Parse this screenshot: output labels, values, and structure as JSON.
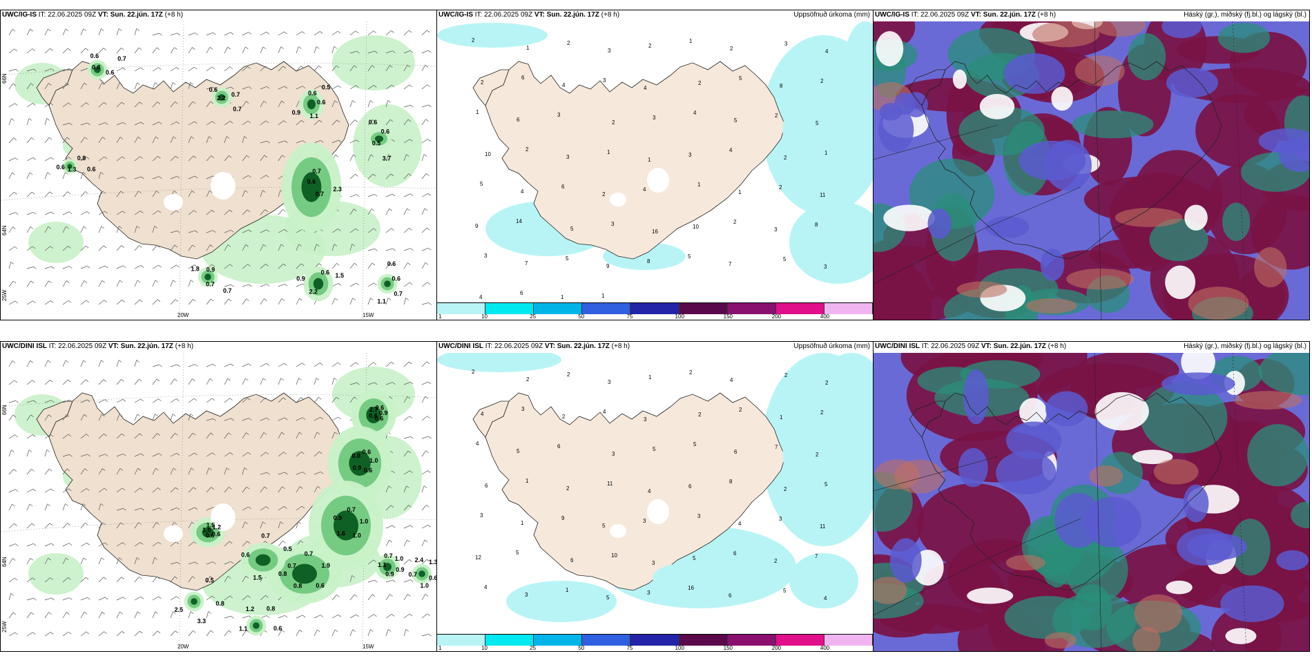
{
  "panels": [
    {
      "id": "top-wind",
      "src": "UWC/IG-IS",
      "it": "IT: 22.06.2025 09Z",
      "vt": "VT: Sun. 22.jún. 17Z",
      "lead": "(+8 h)",
      "right_label": "",
      "lat_labels": [
        "66N",
        "64N",
        "25W"
      ],
      "lon_labels": [
        "20W",
        "15W"
      ],
      "values": [
        "0.6",
        "0.5",
        "0.7",
        "0.7",
        "0.9",
        "0.6",
        "0.7",
        "0.6",
        "0.6",
        "0.9",
        "0.6",
        "0.7",
        "0.6",
        "1.5",
        "1.1",
        "0.9",
        "0.6",
        "0.6",
        "0.5",
        "3.7",
        "0.6",
        "0.7",
        "2.2",
        "0.6",
        "0.7",
        "0.8",
        "0.8",
        "1.1",
        "0.6",
        "2.3",
        "2.2",
        "0.6",
        "0.7",
        "1.8",
        "0.7",
        "1.3",
        "0.6"
      ]
    },
    {
      "id": "top-precip",
      "src": "UWC/IG-IS",
      "it": "IT: 22.06.2025 09Z",
      "vt": "VT: Sun. 22.jún. 17Z",
      "lead": "(+8 h)",
      "right_label": "Uppsöfnuð úrkoma (mm)",
      "values": [
        "2",
        "1",
        "2",
        "3",
        "2",
        "1",
        "2",
        "3",
        "4",
        "2",
        "6",
        "4",
        "3",
        "4",
        "2",
        "5",
        "8",
        "2",
        "1",
        "6",
        "3",
        "2",
        "3",
        "4",
        "5",
        "2",
        "5",
        "10",
        "2",
        "3",
        "1",
        "1",
        "3",
        "4",
        "2",
        "1",
        "5",
        "4",
        "6",
        "2",
        "4",
        "1",
        "1",
        "2",
        "11",
        "9",
        "14",
        "5",
        "3",
        "16",
        "10",
        "2",
        "3",
        "8",
        "3",
        "7",
        "5",
        "9",
        "8",
        "5",
        "7",
        "5",
        "3",
        "4",
        "6",
        "1",
        "1"
      ],
      "legend": [
        "1",
        "10",
        "25",
        "50",
        "75",
        "100",
        "150",
        "200",
        "400"
      ]
    },
    {
      "id": "top-cloud",
      "src": "UWC/IG-IS",
      "it": "IT: 22.06.2025 09Z",
      "vt": "VT: Sun. 22.jún. 17Z",
      "lead": "(+8 h)",
      "right_label": "Háský (gr.), miðský (fj.bl.) og lágský (bl.)"
    },
    {
      "id": "bottom-wind",
      "src": "UWC/DINI ISL",
      "it": "IT: 22.06.2025 09Z",
      "vt": "VT: Sun. 22.jún. 17Z",
      "lead": "(+8 h)",
      "right_label": "",
      "lat_labels": [
        "66N",
        "64N",
        "25W"
      ],
      "lon_labels": [
        "20W",
        "15W"
      ],
      "values": [
        "0.9",
        "0.9",
        "0.7",
        "0.6",
        "0.6",
        "1.2",
        "0.9",
        "2.4",
        "0.6",
        "2.5",
        "0.6",
        "0.6",
        "0.9",
        "1.9",
        "1.5",
        "1.5",
        "0.9",
        "0.7",
        "0.8",
        "3.3",
        "2.7",
        "1.0",
        "1.6",
        "0.7",
        "0.8",
        "1.0",
        "1.0",
        "1.0",
        "1.2",
        "0.8",
        "0.6",
        "0.6",
        "1.0",
        "0.7",
        "0.5",
        "0.6",
        "0.7",
        "0.6",
        "1.1",
        "0.5",
        "0.6",
        "0.8",
        "1.0",
        "0.8",
        "0.7",
        "0.6",
        "1.1",
        "1.3"
      ]
    },
    {
      "id": "bottom-precip",
      "src": "UWC/DINI ISL",
      "it": "IT: 22.06.2025 09Z",
      "vt": "VT: Sun. 22.jún. 17Z",
      "lead": "(+8 h)",
      "right_label": "Uppsöfnuð úrkoma (mm)",
      "values": [
        "2",
        "2",
        "2",
        "3",
        "1",
        "2",
        "4",
        "2",
        "2",
        "4",
        "3",
        "2",
        "4",
        "3",
        "2",
        "2",
        "1",
        "2",
        "4",
        "5",
        "6",
        "3",
        "5",
        "5",
        "6",
        "7",
        "2",
        "6",
        "1",
        "2",
        "11",
        "4",
        "6",
        "8",
        "2",
        "5",
        "3",
        "1",
        "9",
        "5",
        "3",
        "3",
        "4",
        "3",
        "11",
        "12",
        "5",
        "6",
        "10",
        "3",
        "5",
        "6",
        "2",
        "7",
        "4",
        "3",
        "1",
        "5",
        "3",
        "16",
        "6",
        "5",
        "4"
      ],
      "legend": [
        "1",
        "10",
        "25",
        "50",
        "75",
        "100",
        "150",
        "200",
        "400"
      ]
    },
    {
      "id": "bottom-cloud",
      "src": "UWC/DINI ISL",
      "it": "IT: 22.06.2025 09Z",
      "vt": "VT: Sun. 22.jún. 17Z",
      "lead": "(+8 h)",
      "right_label": "Háský (gr.), miðský (fj.bl.) og lágský (bl.)"
    }
  ],
  "colors": {
    "land": "#f6e9dc",
    "land_wind": "#efe0cf",
    "green_light": "#c8f1c8",
    "green_mid": "#6dc77a",
    "green_dark": "#0a5a20",
    "cyan_light": "#b8f4f6",
    "cloud_high": "#1f6f64",
    "cloud_mid": "#7a1245",
    "cloud_low": "#6a6ad6"
  },
  "legend_colors": [
    "#b8f4f6",
    "#00e8f0",
    "#00b4e8",
    "#3060e0",
    "#2424a8",
    "#5a0a4a",
    "#8a1070",
    "#e0108a",
    "#f0b4f0"
  ]
}
